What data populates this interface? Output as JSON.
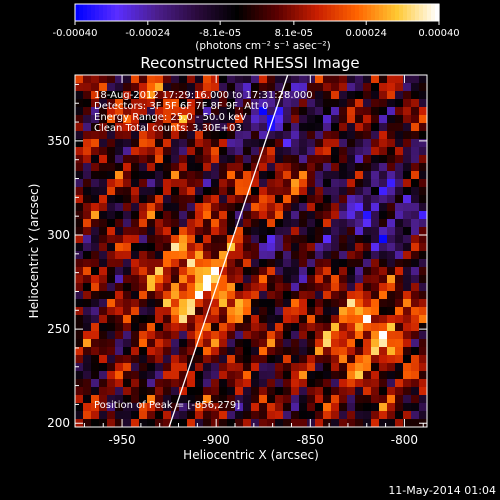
{
  "chart_data": {
    "type": "heatmap",
    "title": "Reconstructed RHESSI Image",
    "xlabel": "Heliocentric X (arcsec)",
    "ylabel": "Heliocentric Y (arcsec)",
    "xlim": [
      -975,
      -788
    ],
    "ylim": [
      198,
      385
    ],
    "x_ticks": [
      -950,
      -900,
      -850,
      -800
    ],
    "x_tick_labels": [
      "-950",
      "-900",
      "-850",
      "-800"
    ],
    "y_ticks": [
      200,
      250,
      300,
      350
    ],
    "y_tick_labels": [
      "200",
      "250",
      "300",
      "350"
    ],
    "colorbar": {
      "range": [
        -0.0004,
        0.0004
      ],
      "ticks": [
        -0.0004,
        -0.00024,
        -8.1e-05,
        8.1e-05,
        0.00024,
        0.0004
      ],
      "tick_labels": [
        "-0.00040",
        "-0.00024",
        "-8.1e-05",
        "8.1e-05",
        "0.00024",
        "0.00040"
      ],
      "unit_label": "(photons cm⁻² s⁻¹ asec⁻²)"
    },
    "annotations": [
      "18-Aug-2012 17:29:16.000 to 17:31:28.000",
      "Detectors: 3F 5F 6F 7F 8F 9F, Att 0",
      "Energy Range: 25.0 - 50.0 keV",
      "Clean    Total counts: 3.30E+03"
    ],
    "peak_label": "Position of Peak = [-856,279]",
    "timestamp": "11-May-2014 01:04",
    "limb_line": [
      [
        -925,
        198
      ],
      [
        -862,
        385
      ]
    ],
    "grid": false
  },
  "colors": {
    "background": "#000000",
    "foreground": "#ffffff",
    "colormap": [
      "#0000ff",
      "#5a2dff",
      "#4b1e8c",
      "#2a0a3c",
      "#000000",
      "#5a0000",
      "#c81e00",
      "#ff6400",
      "#ffc832",
      "#ffffff"
    ]
  }
}
